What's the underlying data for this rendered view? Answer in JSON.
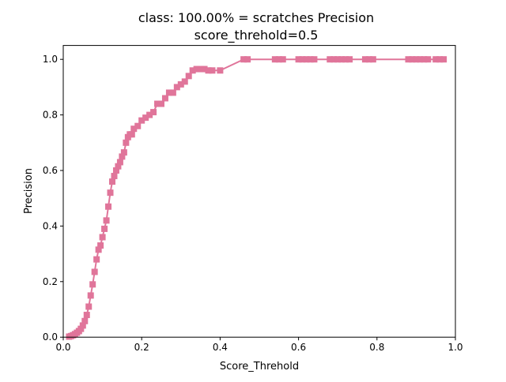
{
  "colors": {
    "series": "#e0759a",
    "axis": "#000000",
    "background": "#ffffff"
  },
  "chart_data": {
    "type": "line",
    "title": "class: 100.00% = scratches Precision",
    "subtitle": "score_threhold=0.5",
    "xlabel": "Score_Threhold",
    "ylabel": "Precision",
    "xlim": [
      0.0,
      1.0
    ],
    "ylim": [
      0.0,
      1.05
    ],
    "xticks": [
      0.0,
      0.2,
      0.4,
      0.6,
      0.8,
      1.0
    ],
    "xtick_labels": [
      "0.0",
      "0.2",
      "0.4",
      "0.6",
      "0.8",
      "1.0"
    ],
    "yticks": [
      0.0,
      0.2,
      0.4,
      0.6,
      0.8,
      1.0
    ],
    "ytick_labels": [
      "0.0",
      "0.2",
      "0.4",
      "0.6",
      "0.8",
      "1.0"
    ],
    "grid": false,
    "legend": "none",
    "marker": "square",
    "series": [
      {
        "x": [
          0.015,
          0.02,
          0.025,
          0.03,
          0.035,
          0.04,
          0.045,
          0.05,
          0.055,
          0.06,
          0.065,
          0.07,
          0.075,
          0.08,
          0.085,
          0.09,
          0.095,
          0.1,
          0.105,
          0.11,
          0.115,
          0.12,
          0.125,
          0.13,
          0.135,
          0.14,
          0.145,
          0.15,
          0.155,
          0.16,
          0.165,
          0.17,
          0.175,
          0.18,
          0.19,
          0.2,
          0.21,
          0.22,
          0.23,
          0.24,
          0.25,
          0.26,
          0.27,
          0.28,
          0.29,
          0.3,
          0.31,
          0.32,
          0.33,
          0.34,
          0.35,
          0.36,
          0.37,
          0.38,
          0.4,
          0.46,
          0.47,
          0.54,
          0.55,
          0.56,
          0.6,
          0.61,
          0.62,
          0.63,
          0.64,
          0.68,
          0.69,
          0.7,
          0.71,
          0.72,
          0.73,
          0.77,
          0.78,
          0.79,
          0.88,
          0.89,
          0.9,
          0.91,
          0.92,
          0.93,
          0.95,
          0.96,
          0.97
        ],
        "y": [
          0.002,
          0.004,
          0.007,
          0.011,
          0.016,
          0.022,
          0.03,
          0.042,
          0.058,
          0.08,
          0.11,
          0.15,
          0.19,
          0.235,
          0.28,
          0.315,
          0.33,
          0.36,
          0.39,
          0.42,
          0.47,
          0.52,
          0.56,
          0.58,
          0.6,
          0.615,
          0.63,
          0.65,
          0.665,
          0.7,
          0.72,
          0.73,
          0.73,
          0.75,
          0.76,
          0.78,
          0.79,
          0.8,
          0.81,
          0.84,
          0.84,
          0.86,
          0.88,
          0.88,
          0.9,
          0.91,
          0.92,
          0.94,
          0.96,
          0.965,
          0.965,
          0.965,
          0.96,
          0.96,
          0.96,
          1.0,
          1.0,
          1.0,
          1.0,
          1.0,
          1.0,
          1.0,
          1.0,
          1.0,
          1.0,
          1.0,
          1.0,
          1.0,
          1.0,
          1.0,
          1.0,
          1.0,
          1.0,
          1.0,
          1.0,
          1.0,
          1.0,
          1.0,
          1.0,
          1.0,
          1.0,
          1.0,
          1.0
        ]
      }
    ]
  }
}
